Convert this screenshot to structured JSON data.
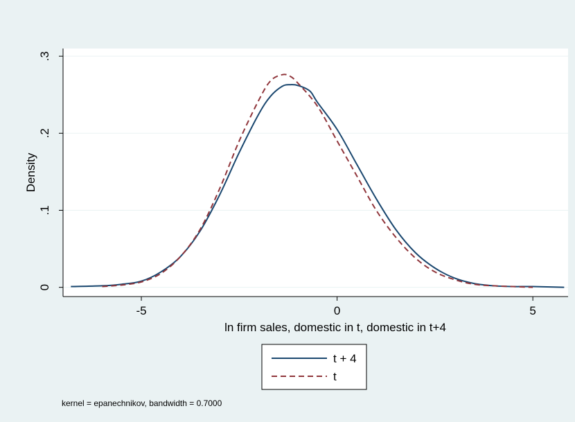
{
  "chart_data": {
    "type": "line",
    "title": "",
    "xlabel": "ln firm sales, domestic in t, domestic in t+4",
    "ylabel": "Density",
    "xlim": [
      -7.0,
      5.9
    ],
    "ylim": [
      -0.012,
      0.31
    ],
    "x_ticks": [
      {
        "value": -5,
        "label": "-5"
      },
      {
        "value": 0,
        "label": "0"
      },
      {
        "value": 5,
        "label": "5"
      }
    ],
    "y_ticks": [
      {
        "value": 0,
        "label": "0"
      },
      {
        "value": 0.1,
        "label": ".1"
      },
      {
        "value": 0.2,
        "label": ".2"
      },
      {
        "value": 0.3,
        "label": ".3"
      }
    ],
    "grid": "horizontal",
    "legend_position": "bottom-center",
    "note": "kernel = epanechnikov, bandwidth = 0.7000",
    "series": [
      {
        "name": "t + 4",
        "color": "#1a476f",
        "style": "solid",
        "x": [
          -6.8,
          -6.0,
          -5.5,
          -5.0,
          -4.5,
          -4.0,
          -3.5,
          -3.0,
          -2.5,
          -2.0,
          -1.7,
          -1.4,
          -1.2,
          -1.0,
          -0.7,
          -0.5,
          0.0,
          0.5,
          1.0,
          1.5,
          2.0,
          2.5,
          3.0,
          3.5,
          4.0,
          4.5,
          5.0,
          5.8
        ],
        "values": [
          0.001,
          0.002,
          0.004,
          0.008,
          0.02,
          0.04,
          0.073,
          0.12,
          0.175,
          0.225,
          0.248,
          0.261,
          0.263,
          0.262,
          0.255,
          0.24,
          0.205,
          0.16,
          0.115,
          0.075,
          0.045,
          0.025,
          0.012,
          0.005,
          0.002,
          0.001,
          0.001,
          0.0
        ]
      },
      {
        "name": "t",
        "color": "#90353b",
        "style": "dashed",
        "x": [
          -6.0,
          -5.5,
          -5.0,
          -4.5,
          -4.0,
          -3.5,
          -3.0,
          -2.5,
          -2.0,
          -1.7,
          -1.4,
          -1.2,
          -1.0,
          -0.5,
          0.0,
          0.5,
          1.0,
          1.5,
          2.0,
          2.5,
          3.0,
          3.5,
          4.0,
          4.5,
          5.0
        ],
        "values": [
          0.001,
          0.003,
          0.007,
          0.018,
          0.04,
          0.075,
          0.128,
          0.19,
          0.243,
          0.268,
          0.276,
          0.274,
          0.265,
          0.235,
          0.19,
          0.145,
          0.1,
          0.065,
          0.038,
          0.02,
          0.01,
          0.004,
          0.002,
          0.001,
          0.0
        ]
      }
    ]
  }
}
